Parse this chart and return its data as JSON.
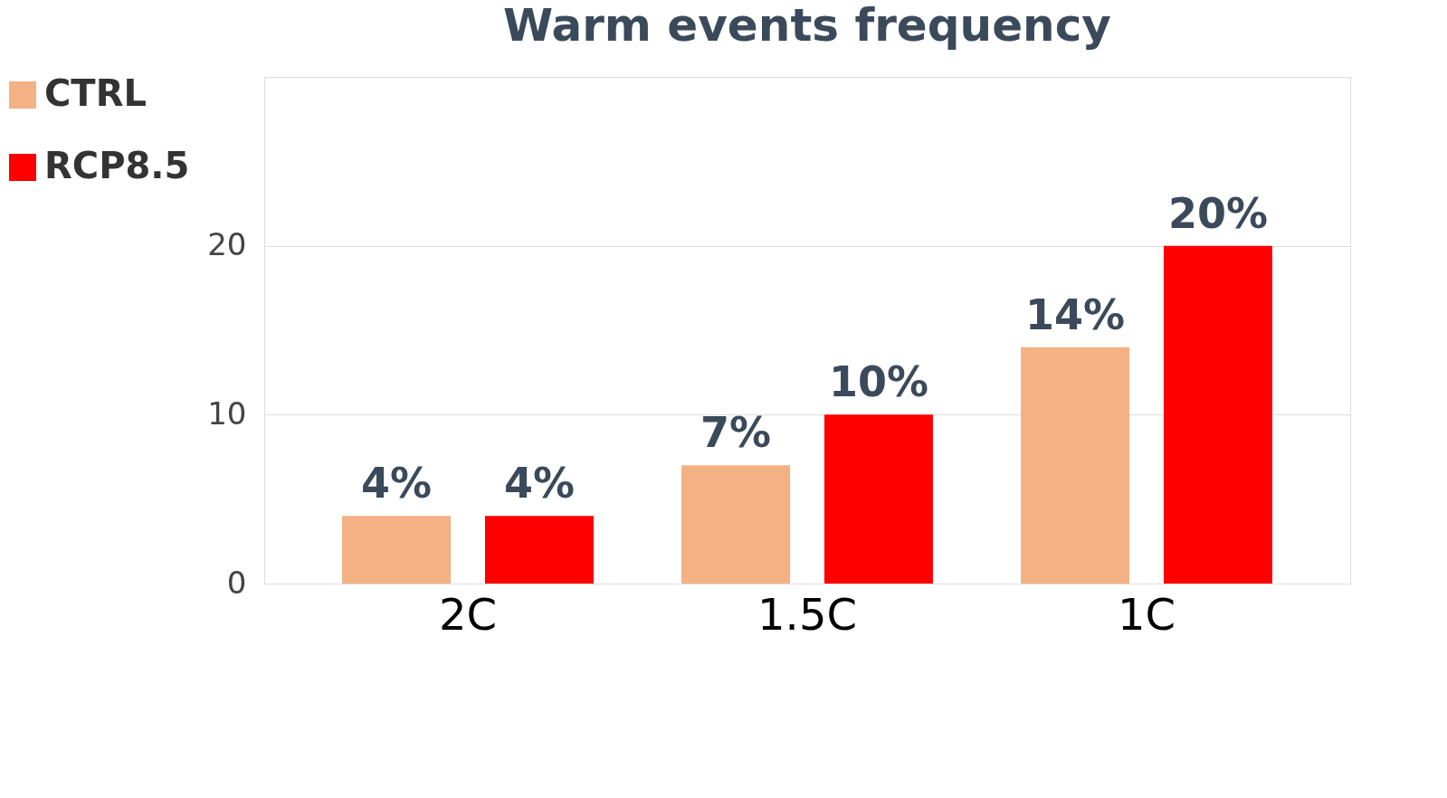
{
  "chart_data": {
    "type": "bar",
    "title": "Warm events frequency",
    "categories": [
      "2C",
      "1.5C",
      "1C"
    ],
    "series": [
      {
        "name": "CTRL",
        "color": "#f4b183",
        "values": [
          4,
          7,
          14
        ],
        "value_labels": [
          "4%",
          "7%",
          "14%"
        ]
      },
      {
        "name": "RCP8.5",
        "color": "#ff0000",
        "values": [
          4,
          10,
          20
        ],
        "value_labels": [
          "4%",
          "10%",
          "20%"
        ]
      }
    ],
    "ylim": [
      0,
      30
    ],
    "yticks": [
      0,
      10,
      20,
      {
        "value": 30,
        "label": null
      }
    ],
    "grid": "y",
    "legend": "left"
  }
}
